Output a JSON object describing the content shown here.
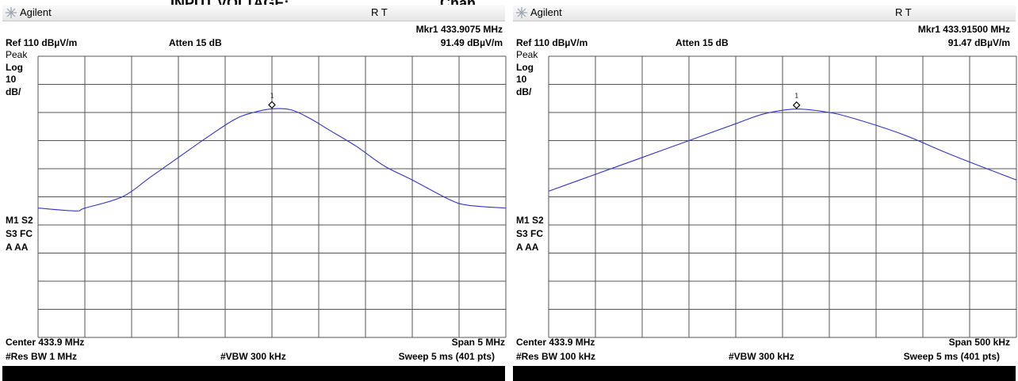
{
  "top_texts": [
    {
      "text": "INPUT VOLTAGE:",
      "left": 215
    },
    {
      "text": "Chan",
      "left": 555
    }
  ],
  "chart_data": [
    {
      "type": "line",
      "brand": "Agilent",
      "title_flags": "R  T",
      "marker_label": "Mkr1  433.9075 MHz",
      "marker_value": "91.49 dBµV/m",
      "ref_level": "Ref 110 dBµV/m",
      "atten": "Atten 15 dB",
      "side_labels": [
        "Peak",
        "Log",
        "10",
        "dB/"
      ],
      "status_labels": [
        "M1  S2",
        "S3  FC",
        "A   AA"
      ],
      "center": "Center 433.9 MHz",
      "span": "Span 5 MHz",
      "res_bw": "#Res BW 1 MHz",
      "vbw": "#VBW 300 kHz",
      "sweep": "Sweep 5 ms (401 pts)",
      "marker_number": "1",
      "xlabel": "",
      "ylabel": "",
      "x_range_mhz": [
        431.4,
        436.4
      ],
      "y_range_dbuv_m": [
        10,
        110
      ],
      "grid": true,
      "x_mhz": [
        431.4,
        431.8,
        431.9,
        432.3,
        432.6,
        432.9,
        433.2,
        433.5,
        433.7,
        433.9,
        434.1,
        434.3,
        434.5,
        434.8,
        435.1,
        435.4,
        435.8,
        436.0,
        436.4
      ],
      "y_dbuv_m": [
        56,
        55,
        56,
        60,
        67,
        74,
        81,
        87.5,
        90,
        91.3,
        91,
        88,
        84,
        78,
        71,
        66,
        59,
        57,
        56
      ],
      "series_color": "#3333cc"
    },
    {
      "type": "line",
      "brand": "Agilent",
      "title_flags": "R  T",
      "marker_label": "Mkr1  433.91500 MHz",
      "marker_value": "91.47 dBµV/m",
      "ref_level": "Ref 110 dBµV/m",
      "atten": "Atten 15 dB",
      "side_labels": [
        "Peak",
        "Log",
        "10",
        "dB/"
      ],
      "status_labels": [
        "M1  S2",
        "S3  FC",
        "A   AA"
      ],
      "center": "Center 433.9 MHz",
      "span": "Span 500 kHz",
      "res_bw": "#Res BW 100 kHz",
      "vbw": "#VBW 300 kHz",
      "sweep": "Sweep 5 ms (401 pts)",
      "marker_number": "1",
      "xlabel": "",
      "ylabel": "",
      "x_range_mhz": [
        433.65,
        434.15
      ],
      "y_range_dbuv_m": [
        10,
        110
      ],
      "grid": true,
      "x_mhz": [
        433.65,
        433.7,
        433.75,
        433.8,
        433.85,
        433.88,
        433.915,
        433.95,
        433.98,
        434.03,
        434.08,
        434.15
      ],
      "y_dbuv_m": [
        62,
        68,
        74,
        80,
        86,
        89.5,
        91.2,
        90,
        87.5,
        82,
        75,
        66
      ],
      "series_color": "#3333cc"
    }
  ]
}
